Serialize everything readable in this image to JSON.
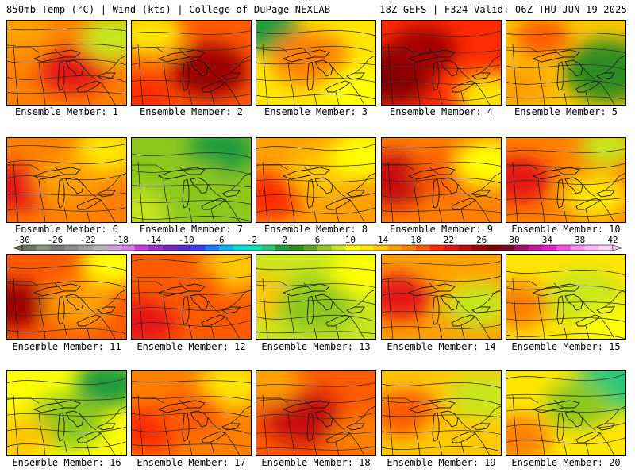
{
  "header": {
    "left": "850mb Temp (°C) | Wind (kts) | College of DuPage NEXLAB",
    "right": "18Z GEFS | F324 Valid: 06Z THU JUN 19 2025"
  },
  "panels": [
    {
      "label": "Ensemble Member: 1",
      "base": 17,
      "blobs": [
        [
          0.55,
          0.6,
          22,
          30
        ],
        [
          0.1,
          0.1,
          15,
          30
        ],
        [
          0.9,
          0.2,
          9,
          30
        ]
      ]
    },
    {
      "label": "Ensemble Member: 2",
      "base": 18,
      "blobs": [
        [
          0.65,
          0.6,
          25,
          35
        ],
        [
          0.15,
          0.15,
          12,
          30
        ],
        [
          0.1,
          0.9,
          20,
          25
        ]
      ]
    },
    {
      "label": "Ensemble Member: 3",
      "base": 12,
      "blobs": [
        [
          0.1,
          0.1,
          2,
          30
        ],
        [
          0.45,
          0.45,
          17,
          35
        ],
        [
          0.85,
          0.85,
          10,
          30
        ]
      ]
    },
    {
      "label": "Ensemble Member: 4",
      "base": 20,
      "blobs": [
        [
          0.1,
          0.65,
          28,
          35
        ],
        [
          0.35,
          0.35,
          26,
          30
        ],
        [
          0.9,
          0.9,
          12,
          30
        ]
      ]
    },
    {
      "label": "Ensemble Member: 5",
      "base": 13,
      "blobs": [
        [
          0.85,
          0.6,
          3,
          40
        ],
        [
          0.3,
          0.2,
          18,
          25
        ],
        [
          0.1,
          0.8,
          16,
          30
        ]
      ]
    },
    {
      "label": "Ensemble Member: 6",
      "base": 17,
      "blobs": [
        [
          0.1,
          0.6,
          23,
          30
        ],
        [
          0.85,
          0.15,
          12,
          30
        ],
        [
          0.5,
          0.5,
          16,
          30
        ]
      ]
    },
    {
      "label": "Ensemble Member: 7",
      "base": 7,
      "blobs": [
        [
          0.75,
          0.15,
          2,
          30
        ],
        [
          0.1,
          0.85,
          9,
          25
        ],
        [
          0.5,
          0.6,
          6,
          35
        ]
      ]
    },
    {
      "label": "Ensemble Member: 8",
      "base": 15,
      "blobs": [
        [
          0.1,
          0.7,
          21,
          30
        ],
        [
          0.55,
          0.4,
          14,
          30
        ],
        [
          0.9,
          0.2,
          11,
          30
        ]
      ]
    },
    {
      "label": "Ensemble Member: 9",
      "base": 17,
      "blobs": [
        [
          0.1,
          0.5,
          24,
          35
        ],
        [
          0.55,
          0.4,
          18,
          30
        ],
        [
          0.9,
          0.3,
          10,
          30
        ]
      ]
    },
    {
      "label": "Ensemble Member: 10",
      "base": 17,
      "blobs": [
        [
          0.1,
          0.5,
          23,
          30
        ],
        [
          0.85,
          0.1,
          8,
          25
        ],
        [
          0.75,
          0.7,
          12,
          30
        ]
      ]
    },
    {
      "label": "Ensemble Member: 11",
      "base": 18,
      "blobs": [
        [
          0.05,
          0.6,
          25,
          30
        ],
        [
          0.9,
          0.1,
          11,
          30
        ],
        [
          0.6,
          0.6,
          16,
          30
        ]
      ]
    },
    {
      "label": "Ensemble Member: 12",
      "base": 18,
      "blobs": [
        [
          0.1,
          0.8,
          22,
          30
        ],
        [
          0.85,
          0.15,
          13,
          30
        ],
        [
          0.5,
          0.4,
          18,
          30
        ]
      ]
    },
    {
      "label": "Ensemble Member: 13",
      "base": 9,
      "blobs": [
        [
          0.05,
          0.5,
          14,
          30
        ],
        [
          0.5,
          0.6,
          7,
          35
        ],
        [
          0.9,
          0.2,
          10,
          30
        ]
      ]
    },
    {
      "label": "Ensemble Member: 14",
      "base": 15,
      "blobs": [
        [
          0.15,
          0.5,
          23,
          30
        ],
        [
          0.8,
          0.6,
          9,
          30
        ],
        [
          0.6,
          0.1,
          15,
          30
        ]
      ]
    },
    {
      "label": "Ensemble Member: 15",
      "base": 12,
      "blobs": [
        [
          0.1,
          0.6,
          17,
          30
        ],
        [
          0.65,
          0.5,
          8,
          35
        ],
        [
          0.9,
          0.9,
          11,
          30
        ]
      ]
    },
    {
      "label": "Ensemble Member: 16",
      "base": 11,
      "blobs": [
        [
          0.85,
          0.15,
          2,
          30
        ],
        [
          0.5,
          0.6,
          7,
          35
        ],
        [
          0.1,
          0.8,
          14,
          30
        ]
      ]
    },
    {
      "label": "Ensemble Member: 17",
      "base": 17,
      "blobs": [
        [
          0.15,
          0.7,
          20,
          30
        ],
        [
          0.85,
          0.15,
          12,
          30
        ],
        [
          0.5,
          0.5,
          18,
          30
        ]
      ]
    },
    {
      "label": "Ensemble Member: 18",
      "base": 18,
      "blobs": [
        [
          0.4,
          0.55,
          24,
          35
        ],
        [
          0.1,
          0.1,
          16,
          30
        ],
        [
          0.9,
          0.8,
          17,
          30
        ]
      ]
    },
    {
      "label": "Ensemble Member: 19",
      "base": 14,
      "blobs": [
        [
          0.85,
          0.3,
          8,
          30
        ],
        [
          0.2,
          0.5,
          18,
          30
        ],
        [
          0.6,
          0.8,
          14,
          30
        ]
      ]
    },
    {
      "label": "Ensemble Member: 20",
      "base": 12,
      "blobs": [
        [
          0.9,
          0.15,
          0,
          35
        ],
        [
          0.6,
          0.4,
          7,
          30
        ],
        [
          0.1,
          0.8,
          17,
          30
        ]
      ]
    }
  ],
  "colorbar": {
    "ticks": [
      "-30",
      "-26",
      "-22",
      "-18",
      "-14",
      "-10",
      "-6",
      "-2",
      "2",
      "6",
      "10",
      "14",
      "18",
      "22",
      "26",
      "30",
      "34",
      "38",
      "42"
    ],
    "tick_values": [
      -30,
      -26,
      -22,
      -18,
      -14,
      -10,
      -6,
      -2,
      2,
      6,
      10,
      14,
      18,
      22,
      26,
      30,
      34,
      38,
      42
    ],
    "colors": [
      "#6e7466",
      "#8a9186",
      "#787878",
      "#8c8c8c",
      "#a0a0a0",
      "#b4b4b4",
      "#c8a0dc",
      "#d77ae6",
      "#c040d8",
      "#9b30c8",
      "#7a22c4",
      "#5a2ad2",
      "#3c3cff",
      "#1f78ff",
      "#00b4ff",
      "#00dcdc",
      "#00e6b4",
      "#28c87a",
      "#1e9b3c",
      "#2e8b22",
      "#5aa51e",
      "#8cc81e",
      "#c8e61e",
      "#ffff00",
      "#ffe600",
      "#ffc800",
      "#ffa000",
      "#ff8000",
      "#ff5a00",
      "#ff2a00",
      "#e61414",
      "#c80a0a",
      "#a00000",
      "#820000",
      "#7a0820",
      "#a0106a",
      "#c814a0",
      "#e61ec8",
      "#ff50e6",
      "#ff8cf0",
      "#ffb4f5",
      "#ffd2fa"
    ]
  },
  "colors": {
    "outline": "#1a1a1a",
    "contour": "#333333"
  }
}
